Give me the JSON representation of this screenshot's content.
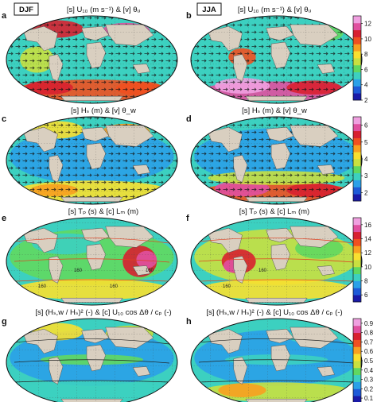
{
  "figure": {
    "seasons": [
      {
        "label": "DJF"
      },
      {
        "label": "JJA"
      }
    ],
    "panels": [
      {
        "letter": "a",
        "title": "[s] U₁₀ (m s⁻¹) & [v] θᵤ",
        "season": "DJF"
      },
      {
        "letter": "b",
        "title": "[s] U₁₀ (m s⁻¹) & [v] θᵤ",
        "season": "JJA"
      },
      {
        "letter": "c",
        "title": "[s] Hₛ (m) & [v] θ_w",
        "season": "DJF"
      },
      {
        "letter": "d",
        "title": "[s] Hₛ (m) & [v] θ_w",
        "season": "JJA"
      },
      {
        "letter": "e",
        "title": "[s] Tₚ (s) & [c] Lₘ (m)",
        "season": "DJF"
      },
      {
        "letter": "f",
        "title": "[s] Tₚ (s) & [c] Lₘ (m)",
        "season": "JJA"
      },
      {
        "letter": "g",
        "title": "[s] (Hₛ,w / Hₛ)² (-) & [c] U₁₀ cos Δθ / cₚ (-)",
        "season": "DJF"
      },
      {
        "letter": "h",
        "title": "[s] (Hₛ,w / Hₛ)² (-) & [c] U₁₀ cos Δθ / cₚ (-)",
        "season": "JJA"
      }
    ]
  },
  "chart_data": [
    {
      "type": "heatmap",
      "rows": [
        "a/b"
      ],
      "variable": "U10",
      "colorbar": {
        "ticks": [
          "2",
          "4",
          "6",
          "8",
          "10",
          "12"
        ],
        "min": 2,
        "max": 13
      },
      "colormap": [
        "#1a1aa8",
        "#1e5ad8",
        "#2aa0e8",
        "#3cd0c0",
        "#60d860",
        "#c8e040",
        "#f8e030",
        "#f8a020",
        "#f05020",
        "#d82030",
        "#e050a0",
        "#f0a0e0"
      ]
    },
    {
      "type": "heatmap",
      "rows": [
        "c/d"
      ],
      "variable": "Hs",
      "colorbar": {
        "ticks": [
          "2",
          "3",
          "4",
          "5",
          "6"
        ],
        "min": 1.5,
        "max": 6.5
      },
      "colormap": [
        "#1a1aa8",
        "#1e5ad8",
        "#2aa0e8",
        "#3cd0c0",
        "#60d860",
        "#c8e040",
        "#f8e030",
        "#f8a020",
        "#f05020",
        "#d82030",
        "#e050a0",
        "#f0a0e0"
      ]
    },
    {
      "type": "heatmap",
      "rows": [
        "e/f"
      ],
      "variable": "Tp",
      "colorbar": {
        "ticks": [
          "6",
          "8",
          "10",
          "12",
          "14",
          "16"
        ],
        "min": 5,
        "max": 17
      },
      "contour_labels": {
        "e": [
          "160",
          "160",
          "160",
          "160"
        ],
        "f": [
          "160",
          "160"
        ]
      },
      "colormap": [
        "#1a1aa8",
        "#1e5ad8",
        "#2aa0e8",
        "#3cd0c0",
        "#60d860",
        "#c8e040",
        "#f8e030",
        "#f8a020",
        "#f05020",
        "#d82030",
        "#e050a0",
        "#f0a0e0"
      ]
    },
    {
      "type": "heatmap",
      "rows": [
        "g/h"
      ],
      "variable": "windsea fraction",
      "colorbar": {
        "ticks": [
          "0.1",
          "0.2",
          "0.3",
          "0.4",
          "0.5",
          "0.6",
          "0.7",
          "0.8",
          "0.9"
        ],
        "min": 0.05,
        "max": 0.95
      },
      "colormap": [
        "#1a1aa8",
        "#1e5ad8",
        "#2aa0e8",
        "#3cd0c0",
        "#60d860",
        "#c8e040",
        "#f8e030",
        "#f8a020",
        "#f05020",
        "#d82030",
        "#e050a0",
        "#f0a0e0"
      ]
    }
  ]
}
